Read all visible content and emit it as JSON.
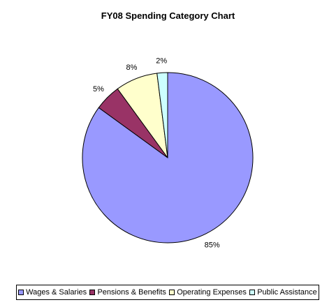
{
  "chart_data": {
    "type": "pie",
    "title": "FY08 Spending Category Chart",
    "slices": [
      {
        "name": "Wages & Salaries",
        "value": 85,
        "label": "85%",
        "color": "#9999ff"
      },
      {
        "name": "Pensions & Benefits",
        "value": 5,
        "label": "5%",
        "color": "#993366"
      },
      {
        "name": "Operating Expenses",
        "value": 8,
        "label": "8%",
        "color": "#ffffcc"
      },
      {
        "name": "Public Assistance",
        "value": 2,
        "label": "2%",
        "color": "#ccffff"
      }
    ],
    "legend_placement": "bottom"
  }
}
